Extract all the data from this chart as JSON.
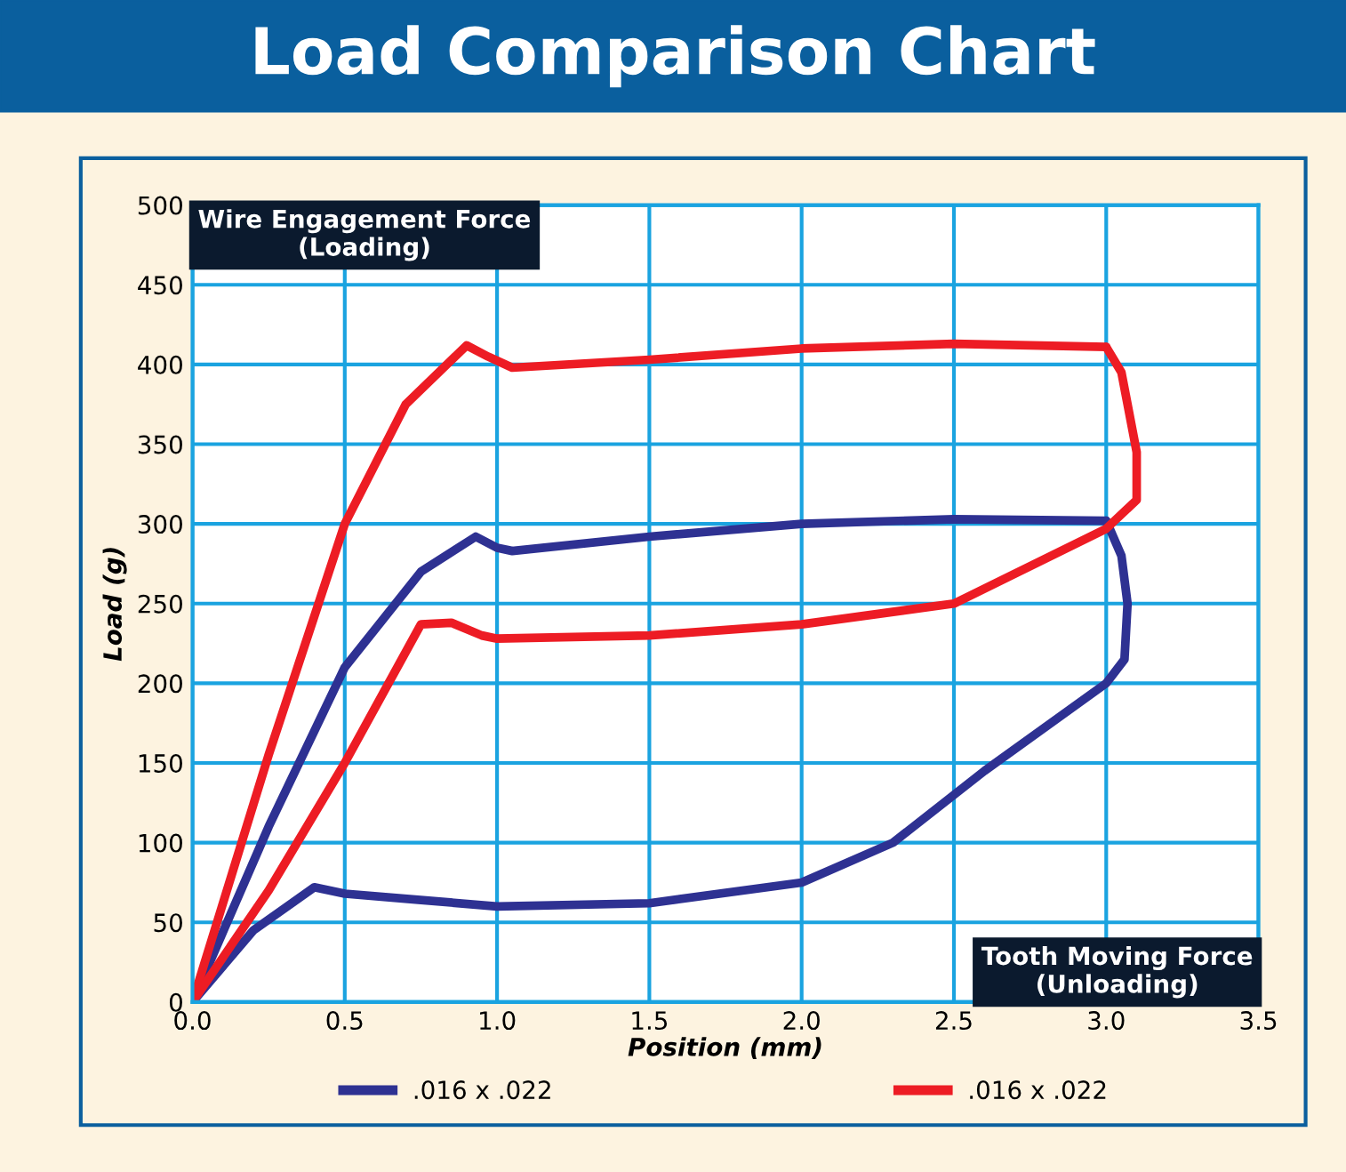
{
  "chart_data": {
    "type": "line",
    "title": "Load Comparison Chart",
    "xlabel": "Position (mm)",
    "ylabel": "Load (g)",
    "xlim": [
      0,
      3.5
    ],
    "ylim": [
      0,
      500
    ],
    "xticks": [
      {
        "value": 0,
        "label": "0.0"
      },
      0.5,
      {
        "value": 1,
        "label": "1.0"
      },
      1.5,
      {
        "value": 2,
        "label": "2.0"
      },
      2.5,
      {
        "value": 3,
        "label": "3.0"
      },
      3.5
    ],
    "yticks": [
      0,
      50,
      100,
      150,
      200,
      250,
      300,
      350,
      400,
      450,
      500
    ],
    "grid": true,
    "legend": "bottom",
    "marker": "none",
    "line_style": "solid",
    "annotations": [
      "Wire Engagement Force\n(Loading)",
      "Tooth Moving Force\n(Unloading)"
    ],
    "series": [
      {
        "name": ".016 x .022",
        "color": "#2e3192",
        "x": [
          0,
          0.25,
          0.5,
          0.75,
          0.93,
          1.0,
          1.05,
          1.5,
          2.0,
          2.5,
          3.0
        ],
        "values": [
          0,
          110,
          210,
          270,
          292,
          285,
          283,
          292,
          300,
          303,
          302
        ]
      },
      {
        "color": "#2e3192",
        "x": [
          3.0,
          3.05,
          3.07,
          3.06,
          3.0,
          2.6,
          2.3,
          2.0,
          1.5,
          1.0,
          0.5,
          0.4,
          0.2,
          0
        ],
        "values": [
          302,
          280,
          250,
          215,
          200,
          145,
          100,
          75,
          62,
          60,
          68,
          72,
          45,
          0
        ]
      },
      {
        "name": ".016 x .022",
        "color": "#ed1c24",
        "x": [
          0,
          0.25,
          0.5,
          0.7,
          0.9,
          0.97,
          1.05,
          1.5,
          2.0,
          2.5,
          3.0
        ],
        "values": [
          0,
          155,
          300,
          375,
          412,
          405,
          398,
          403,
          410,
          413,
          411
        ]
      },
      {
        "color": "#ed1c24",
        "x": [
          3.0,
          3.05,
          3.1,
          3.1,
          3.0,
          2.5,
          2.0,
          1.5,
          1.0,
          0.95,
          0.85,
          0.75,
          0.5,
          0.25,
          0
        ],
        "values": [
          411,
          395,
          345,
          315,
          297,
          250,
          237,
          230,
          228,
          230,
          238,
          237,
          150,
          70,
          0
        ]
      }
    ]
  }
}
